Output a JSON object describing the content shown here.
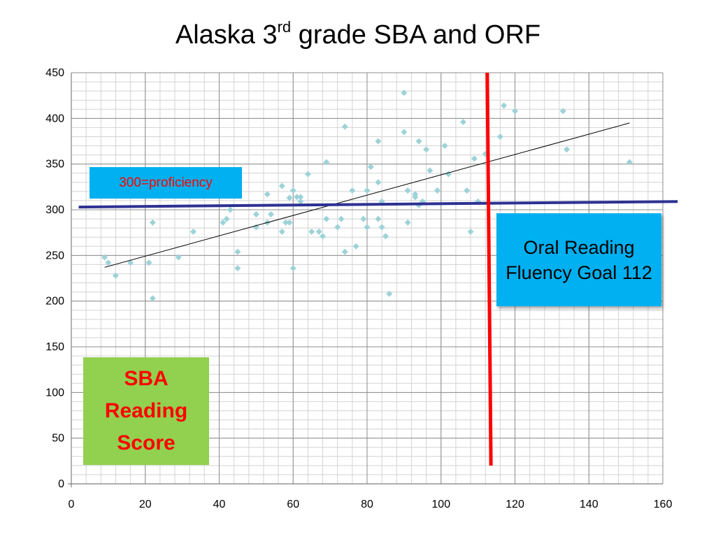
{
  "title": {
    "main": "Alaska 3",
    "sup": "rd",
    "rest": " grade SBA and ORF"
  },
  "chart_data": {
    "type": "scatter",
    "xlim": [
      0,
      160
    ],
    "ylim": [
      0,
      450
    ],
    "x_ticks": [
      0,
      20,
      40,
      60,
      80,
      100,
      120,
      140,
      160
    ],
    "y_ticks": [
      0,
      50,
      100,
      150,
      200,
      250,
      300,
      350,
      400,
      450
    ],
    "grid": true,
    "marker_color": "#9dd3d8",
    "points": [
      [
        9,
        248
      ],
      [
        10,
        242
      ],
      [
        12,
        228
      ],
      [
        16,
        242
      ],
      [
        21,
        242
      ],
      [
        22,
        286
      ],
      [
        22,
        203
      ],
      [
        29,
        248
      ],
      [
        33,
        276
      ],
      [
        41,
        286
      ],
      [
        42,
        290
      ],
      [
        43,
        300
      ],
      [
        45,
        254
      ],
      [
        45,
        236
      ],
      [
        50,
        295
      ],
      [
        50,
        281
      ],
      [
        53,
        286
      ],
      [
        53,
        317
      ],
      [
        54,
        295
      ],
      [
        57,
        326
      ],
      [
        57,
        276
      ],
      [
        58,
        286
      ],
      [
        59,
        286
      ],
      [
        59,
        313
      ],
      [
        60,
        321
      ],
      [
        60,
        236
      ],
      [
        61,
        314
      ],
      [
        62,
        314
      ],
      [
        62,
        309
      ],
      [
        64,
        339
      ],
      [
        65,
        276
      ],
      [
        67,
        276
      ],
      [
        68,
        271
      ],
      [
        69,
        290
      ],
      [
        69,
        352
      ],
      [
        72,
        281
      ],
      [
        73,
        290
      ],
      [
        74,
        391
      ],
      [
        74,
        254
      ],
      [
        76,
        321
      ],
      [
        77,
        260
      ],
      [
        79,
        290
      ],
      [
        80,
        321
      ],
      [
        80,
        281
      ],
      [
        81,
        347
      ],
      [
        83,
        375
      ],
      [
        83,
        330
      ],
      [
        83,
        290
      ],
      [
        84,
        309
      ],
      [
        84,
        281
      ],
      [
        85,
        271
      ],
      [
        86,
        208
      ],
      [
        90,
        428
      ],
      [
        90,
        385
      ],
      [
        91,
        321
      ],
      [
        91,
        286
      ],
      [
        93,
        317
      ],
      [
        93,
        314
      ],
      [
        94,
        375
      ],
      [
        94,
        305
      ],
      [
        95,
        309
      ],
      [
        96,
        366
      ],
      [
        97,
        343
      ],
      [
        99,
        321
      ],
      [
        101,
        370
      ],
      [
        102,
        339
      ],
      [
        106,
        396
      ],
      [
        107,
        321
      ],
      [
        108,
        276
      ],
      [
        109,
        356
      ],
      [
        110,
        309
      ],
      [
        112,
        361
      ],
      [
        116,
        380
      ],
      [
        117,
        414
      ],
      [
        120,
        408
      ],
      [
        133,
        408
      ],
      [
        134,
        366
      ],
      [
        151,
        352
      ]
    ],
    "trendline": {
      "x": [
        9,
        151
      ],
      "y": [
        237,
        395
      ],
      "color": "#000000"
    },
    "proficiency_line": {
      "x": [
        2,
        164
      ],
      "y": [
        303,
        309
      ],
      "color": "#2e3192"
    },
    "goal_line": {
      "x": [
        112.5,
        113.5
      ],
      "y": [
        450,
        20
      ],
      "color": "#ff0000"
    }
  },
  "annotations": {
    "proficiency": "300=proficiency",
    "orf_goal": "Oral Reading Fluency Goal 112",
    "sba_score": "SBA\nReading\nScore"
  }
}
